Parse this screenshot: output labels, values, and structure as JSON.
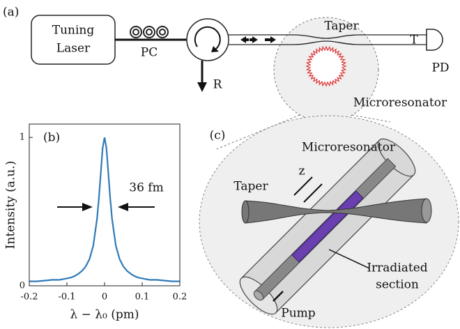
{
  "panel_a": {
    "label": "(a)",
    "laser": [
      "Tuning",
      "Laser"
    ],
    "pc": "PC",
    "r": "R",
    "taper": "Taper",
    "t": "T",
    "pd": "PD",
    "microresonator": "Microresonator"
  },
  "chart_data": {
    "type": "line",
    "panel_label": "(b)",
    "y_label": "Intensity (a.u.)",
    "x_label": "λ − λ₀ (pm)",
    "annotation": "36 fm",
    "x": [
      -0.2,
      -0.18,
      -0.16,
      -0.14,
      -0.12,
      -0.1,
      -0.09,
      -0.08,
      -0.07,
      -0.06,
      -0.05,
      -0.04,
      -0.03,
      -0.02,
      -0.015,
      -0.01,
      -0.005,
      0,
      0.005,
      0.01,
      0.015,
      0.02,
      0.03,
      0.04,
      0.05,
      0.06,
      0.07,
      0.08,
      0.09,
      0.1,
      0.12,
      0.14,
      0.16,
      0.18,
      0.2
    ],
    "values": [
      0.03,
      0.03,
      0.035,
      0.04,
      0.04,
      0.05,
      0.055,
      0.065,
      0.08,
      0.1,
      0.13,
      0.18,
      0.27,
      0.45,
      0.59,
      0.76,
      0.93,
      1,
      0.93,
      0.76,
      0.59,
      0.45,
      0.27,
      0.18,
      0.13,
      0.1,
      0.08,
      0.065,
      0.055,
      0.05,
      0.04,
      0.04,
      0.035,
      0.03,
      0.03
    ],
    "color": "#2f7ab8",
    "xlim": [
      -0.2,
      0.2
    ],
    "ylim": [
      0,
      1.09
    ],
    "xticks": [
      -0.2,
      -0.1,
      0,
      0.1,
      0.2
    ],
    "yticks": [
      0,
      1
    ]
  },
  "panel_c": {
    "label": "(c)",
    "microresonator": "Microresonator",
    "taper": "Taper",
    "z": "z",
    "irradiated": [
      "Irradiated",
      "section"
    ],
    "pump": "Pump"
  }
}
